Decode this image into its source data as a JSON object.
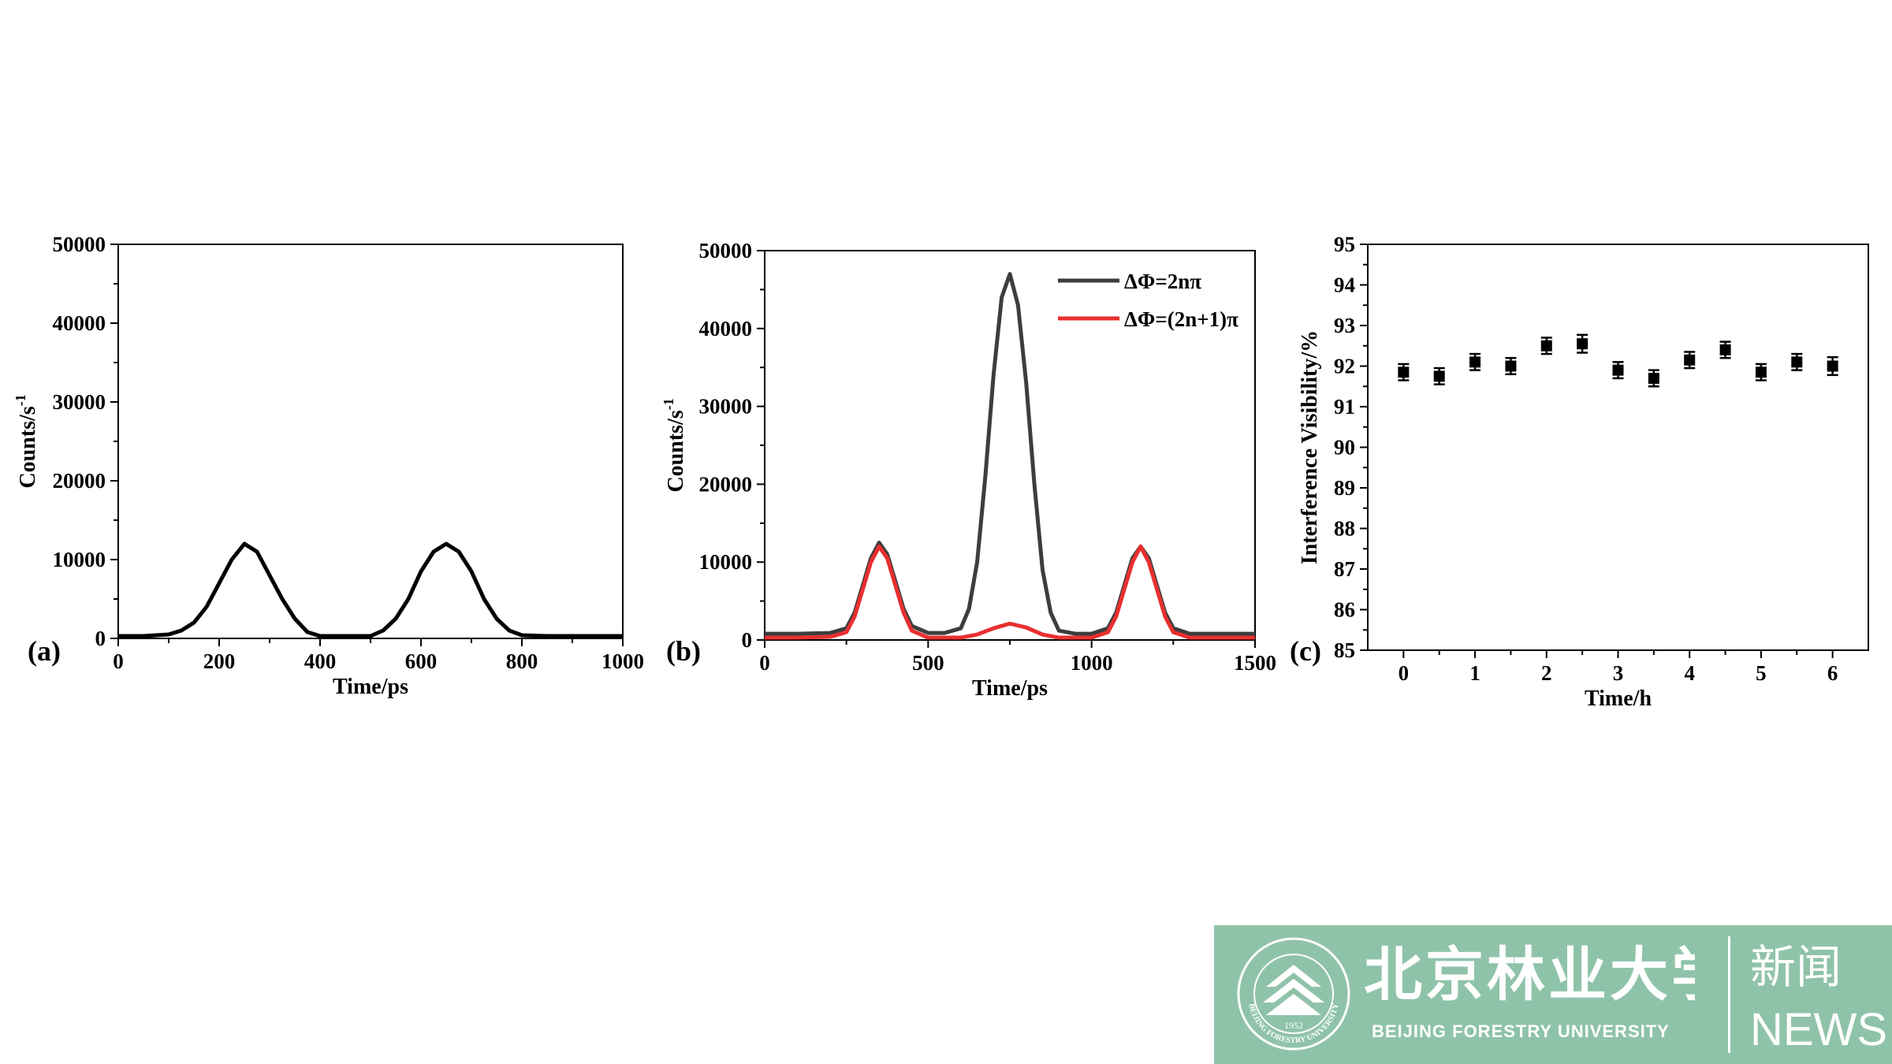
{
  "chart_data": [
    {
      "type": "line",
      "panel_label": "(a)",
      "xlabel": "Time/ps",
      "ylabel_base": "Counts/s",
      "ylabel_sup": "-1",
      "xlim": [
        0,
        1000
      ],
      "ylim": [
        0,
        50000
      ],
      "xticks": [
        0,
        200,
        400,
        600,
        800,
        1000
      ],
      "yticks": [
        0,
        10000,
        20000,
        30000,
        40000,
        50000
      ],
      "series": [
        {
          "color": "#000000",
          "x": [
            0,
            50,
            100,
            125,
            150,
            175,
            200,
            225,
            250,
            275,
            300,
            325,
            350,
            375,
            400,
            450,
            500,
            525,
            550,
            575,
            600,
            625,
            650,
            675,
            700,
            725,
            750,
            775,
            800,
            850,
            900,
            950,
            1000
          ],
          "y": [
            300,
            300,
            500,
            1000,
            2000,
            4000,
            7000,
            10000,
            12000,
            11000,
            8000,
            5000,
            2500,
            800,
            300,
            300,
            300,
            1000,
            2500,
            5000,
            8500,
            11000,
            12000,
            11000,
            8500,
            5000,
            2500,
            1000,
            400,
            300,
            300,
            300,
            300
          ]
        }
      ]
    },
    {
      "type": "line",
      "panel_label": "(b)",
      "xlabel": "Time/ps",
      "ylabel_base": "Counts/s",
      "ylabel_sup": "-1",
      "xlim": [
        0,
        1500
      ],
      "ylim": [
        0,
        50000
      ],
      "xticks": [
        0,
        500,
        1000,
        1500
      ],
      "yticks": [
        0,
        10000,
        20000,
        30000,
        40000,
        50000
      ],
      "legend_position": "top-right",
      "series": [
        {
          "name": "ΔΦ=2nπ",
          "color": "#3d3d3d",
          "x": [
            0,
            100,
            200,
            250,
            275,
            300,
            325,
            350,
            375,
            400,
            425,
            450,
            500,
            550,
            600,
            625,
            650,
            675,
            700,
            725,
            750,
            775,
            800,
            825,
            850,
            875,
            900,
            950,
            1000,
            1050,
            1075,
            1100,
            1125,
            1150,
            1175,
            1200,
            1225,
            1250,
            1300,
            1400,
            1500
          ],
          "y": [
            800,
            800,
            900,
            1500,
            3500,
            7000,
            10500,
            12500,
            11000,
            7500,
            4000,
            1800,
            900,
            900,
            1500,
            4000,
            10000,
            21000,
            34000,
            44000,
            47000,
            43000,
            33000,
            20000,
            9000,
            3500,
            1200,
            800,
            800,
            1500,
            3500,
            7000,
            10500,
            12000,
            10500,
            7000,
            3500,
            1500,
            800,
            800,
            800
          ]
        },
        {
          "name": "ΔΦ=(2n+1)π",
          "color": "#e8302f",
          "x": [
            0,
            100,
            200,
            250,
            275,
            300,
            325,
            350,
            375,
            400,
            425,
            450,
            500,
            550,
            600,
            650,
            700,
            750,
            800,
            850,
            900,
            950,
            1000,
            1050,
            1075,
            1100,
            1125,
            1150,
            1175,
            1200,
            1225,
            1250,
            1300,
            1400,
            1500
          ],
          "y": [
            300,
            300,
            400,
            1000,
            3000,
            6500,
            10000,
            12000,
            10500,
            7000,
            3500,
            1200,
            300,
            300,
            300,
            700,
            1500,
            2100,
            1600,
            700,
            300,
            300,
            300,
            1000,
            3000,
            6500,
            10000,
            12000,
            10000,
            6500,
            3000,
            1000,
            300,
            300,
            300
          ]
        }
      ]
    },
    {
      "type": "scatter",
      "panel_label": "(c)",
      "xlabel": "Time/h",
      "ylabel": "Interference Visibility/%",
      "xlim": [
        -0.5,
        6.5
      ],
      "ylim": [
        85,
        95
      ],
      "xticks": [
        0,
        1,
        2,
        3,
        4,
        5,
        6
      ],
      "yticks": [
        85,
        86,
        87,
        88,
        89,
        90,
        91,
        92,
        93,
        94,
        95
      ],
      "series": [
        {
          "color": "#000000",
          "x": [
            0,
            0.5,
            1,
            1.5,
            2,
            2.5,
            3,
            3.5,
            4,
            4.5,
            5,
            5.5,
            6
          ],
          "y": [
            91.85,
            91.75,
            92.1,
            92.0,
            92.5,
            92.55,
            91.9,
            91.7,
            92.15,
            92.4,
            91.85,
            92.1,
            92.0
          ],
          "error": [
            0.2,
            0.2,
            0.2,
            0.2,
            0.2,
            0.22,
            0.2,
            0.2,
            0.2,
            0.2,
            0.2,
            0.2,
            0.22
          ]
        }
      ]
    }
  ],
  "banner": {
    "emblem_year": "1952",
    "emblem_arc_text": "BEIJING FORESTRY UNIVERSITY",
    "cn_name": "北京林业大学",
    "en_name": "BEIJING FORESTRY UNIVERSITY",
    "news_cn": "新闻",
    "news_en": "NEWS",
    "background_color": "#8fc3a9"
  }
}
